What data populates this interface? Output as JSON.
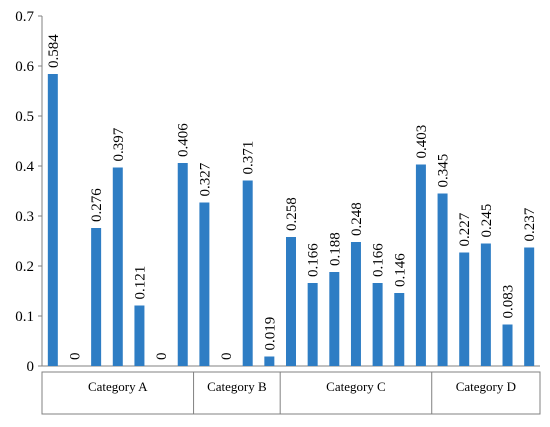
{
  "chart_data": {
    "type": "bar",
    "title": "",
    "xlabel": "",
    "ylabel": "",
    "ylim": [
      0,
      0.7
    ],
    "yticks": [
      "0",
      "0.1",
      "0.2",
      "0.3",
      "0.4",
      "0.5",
      "0.6",
      "0.7"
    ],
    "grid": false,
    "legend": "none",
    "bar_color": "#2e7dc4",
    "groups": [
      {
        "name": "Category A",
        "bars": 7
      },
      {
        "name": "Category B",
        "bars": 4
      },
      {
        "name": "Category C",
        "bars": 7
      },
      {
        "name": "Category D",
        "bars": 5
      }
    ],
    "values": [
      0.584,
      0,
      0.276,
      0.397,
      0.121,
      0,
      0.406,
      0.327,
      0,
      0.371,
      0.019,
      0.258,
      0.166,
      0.188,
      0.248,
      0.166,
      0.146,
      0.403,
      0.345,
      0.227,
      0.245,
      0.083,
      0.237
    ],
    "labels": [
      "0.584",
      "0",
      "0.276",
      "0.397",
      "0.121",
      "0",
      "0.406",
      "0.327",
      "0",
      "0.371",
      "0.019",
      "0.258",
      "0.166",
      "0.188",
      "0.248",
      "0.166",
      "0.146",
      "0.403",
      "0.345",
      "0.227",
      "0.245",
      "0.083",
      "0.237"
    ]
  }
}
